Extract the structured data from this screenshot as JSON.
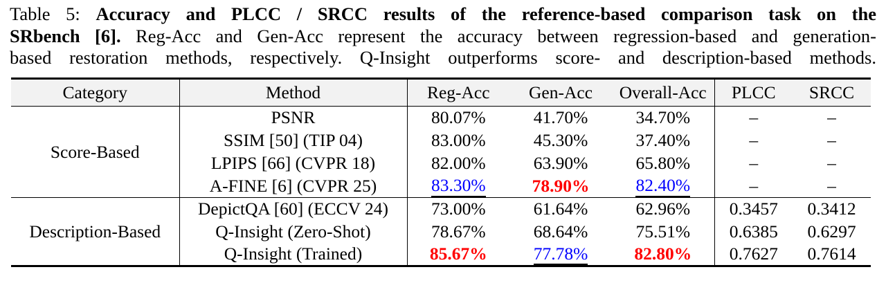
{
  "colors": {
    "best": "#ff0000",
    "second": "#0000ff",
    "rule": "#000000",
    "header_bg": "#f2f2f2"
  },
  "caption": {
    "lines": [
      {
        "normal": "Table 5: ",
        "bold": "Accuracy and PLCC / SRCC results of the reference-based comparison task on the"
      },
      {
        "bold": "SRbench [6].",
        "normal": " Reg-Acc and Gen-Acc represent the accuracy between regression-based and generation-"
      },
      {
        "normal": "based restoration methods, respectively. Q-Insight outperforms score- and description-based methods."
      }
    ]
  },
  "table": {
    "columns": [
      "Category",
      "Method",
      "Reg-Acc",
      "Gen-Acc",
      "Overall-Acc",
      "PLCC",
      "SRCC"
    ],
    "groups": [
      {
        "category": "Score-Based",
        "rows": [
          {
            "method": "PSNR",
            "reg_acc": "80.07%",
            "gen_acc": "41.70%",
            "overall_acc": "34.70%",
            "plcc": "–",
            "srcc": "–"
          },
          {
            "method": "SSIM [50] (TIP 04)",
            "reg_acc": "83.00%",
            "gen_acc": "45.30%",
            "overall_acc": "37.40%",
            "plcc": "–",
            "srcc": "–"
          },
          {
            "method": "LPIPS [66] (CVPR 18)",
            "reg_acc": "82.00%",
            "gen_acc": "63.90%",
            "overall_acc": "65.80%",
            "plcc": "–",
            "srcc": "–"
          },
          {
            "method": "A-FINE [6] (CVPR 25)",
            "reg_acc": "83.30%",
            "gen_acc": "78.90%",
            "overall_acc": "82.40%",
            "plcc": "–",
            "srcc": "–"
          }
        ]
      },
      {
        "category": "Description-Based",
        "rows": [
          {
            "method": "DepictQA [60] (ECCV 24)",
            "reg_acc": "73.00%",
            "gen_acc": "61.64%",
            "overall_acc": "62.96%",
            "plcc": "0.3457",
            "srcc": "0.3412"
          },
          {
            "method": "Q-Insight (Zero-Shot)",
            "reg_acc": "78.67%",
            "gen_acc": "68.64%",
            "overall_acc": "75.51%",
            "plcc": "0.6385",
            "srcc": "0.6297"
          },
          {
            "method": "Q-Insight (Trained)",
            "reg_acc": "85.67%",
            "gen_acc": "77.78%",
            "overall_acc": "82.80%",
            "plcc": "0.7627",
            "srcc": "0.7614"
          }
        ]
      }
    ]
  }
}
